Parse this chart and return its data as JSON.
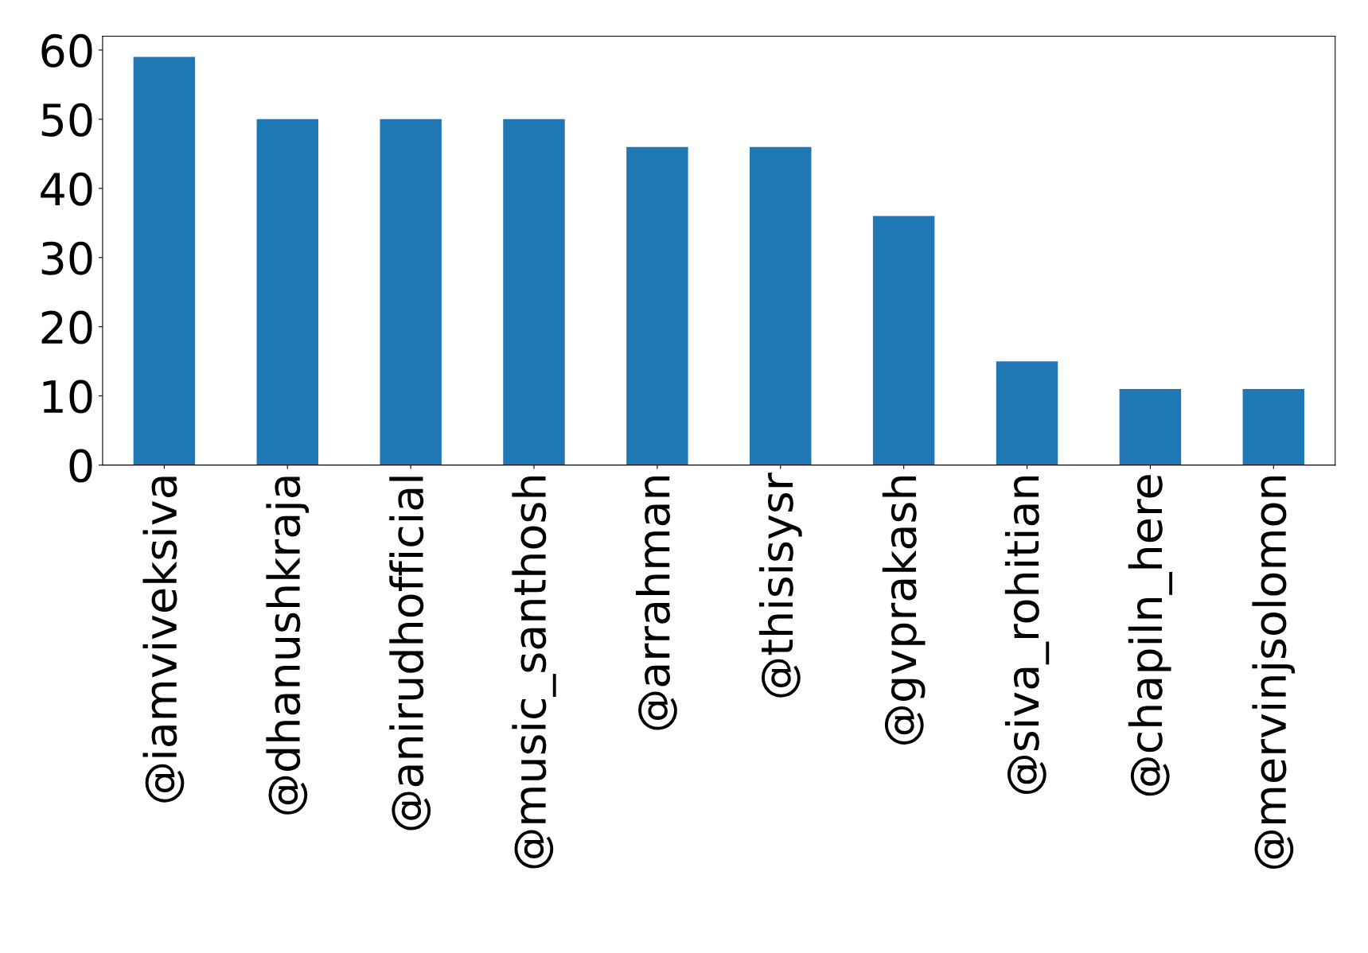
{
  "chart_data": {
    "type": "bar",
    "categories": [
      "@iamviveksiva",
      "@dhanushkraja",
      "@anirudhofficial",
      "@music_santhosh",
      "@arrahman",
      "@thisisysr",
      "@gvprakash",
      "@siva_rohitian",
      "@chapiln_here",
      "@mervinjsolomon"
    ],
    "values": [
      59,
      50,
      50,
      50,
      46,
      46,
      36,
      15,
      11,
      11
    ],
    "color": "#1f77b4",
    "ylim": [
      0,
      62
    ],
    "yticks": [
      0,
      10,
      20,
      30,
      40,
      50,
      60
    ],
    "grid": false,
    "legend": false
  }
}
